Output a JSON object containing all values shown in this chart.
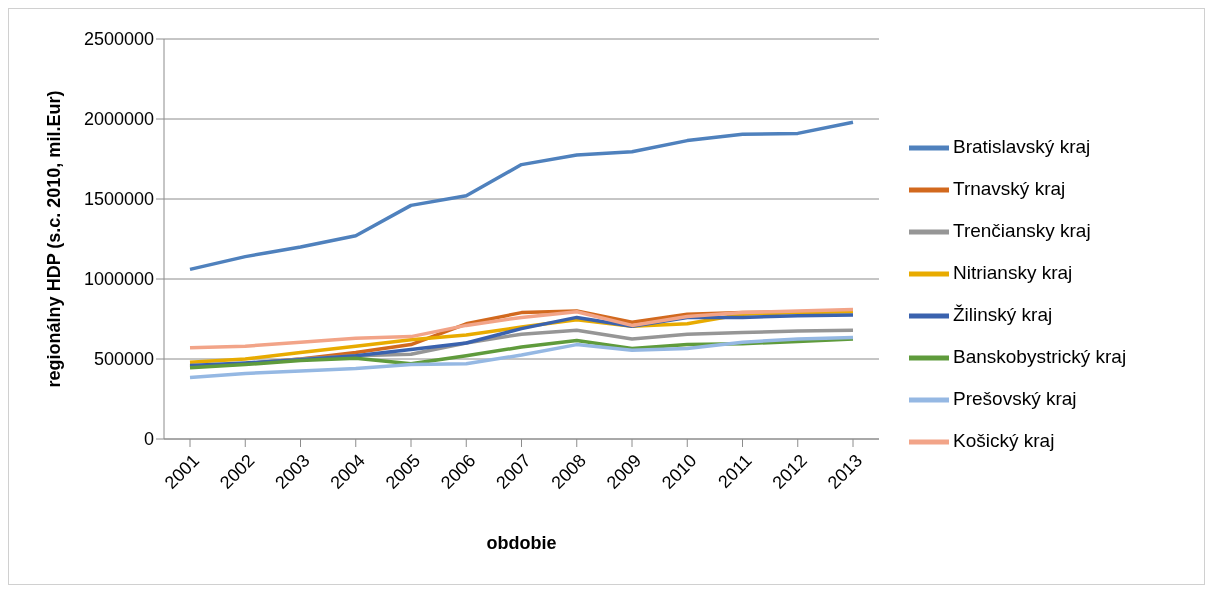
{
  "chart_data": {
    "type": "line",
    "xlabel": "obdobie",
    "ylabel": "regionálny HDP (s.c. 2010, mil.Eur)",
    "categories": [
      "2001",
      "2002",
      "2003",
      "2004",
      "2005",
      "2006",
      "2007",
      "2008",
      "2009",
      "2010",
      "2011",
      "2012",
      "2013"
    ],
    "ylim": [
      0,
      2500000
    ],
    "yticks": [
      0,
      500000,
      1000000,
      1500000,
      2000000,
      2500000
    ],
    "grid": "y",
    "legend": "right",
    "marker": "none",
    "line_style": "solid",
    "series": [
      {
        "name": "Bratislavský kraj",
        "color": "#4f81bd",
        "values": [
          1060000,
          1140000,
          1200000,
          1270000,
          1460000,
          1520000,
          1715000,
          1775000,
          1795000,
          1865000,
          1905000,
          1910000,
          1980000
        ]
      },
      {
        "name": "Trnavský kraj",
        "color": "#d2691e",
        "values": [
          455000,
          470000,
          500000,
          540000,
          590000,
          720000,
          790000,
          800000,
          730000,
          780000,
          790000,
          795000,
          800000
        ]
      },
      {
        "name": "Trenčiansky kraj",
        "color": "#969696",
        "values": [
          450000,
          470000,
          500000,
          520000,
          530000,
          600000,
          655000,
          680000,
          625000,
          655000,
          665000,
          675000,
          680000
        ]
      },
      {
        "name": "Nitriansky kraj",
        "color": "#e8ab00",
        "values": [
          480000,
          500000,
          540000,
          580000,
          620000,
          650000,
          700000,
          745000,
          705000,
          720000,
          780000,
          790000,
          795000
        ]
      },
      {
        "name": "Žilinský kraj",
        "color": "#3a62ae",
        "values": [
          460000,
          475000,
          495000,
          520000,
          560000,
          600000,
          690000,
          760000,
          705000,
          760000,
          760000,
          770000,
          775000
        ]
      },
      {
        "name": "Banskobystrický kraj",
        "color": "#5f9b3c",
        "values": [
          445000,
          465000,
          490000,
          505000,
          470000,
          520000,
          575000,
          615000,
          565000,
          590000,
          595000,
          610000,
          625000
        ]
      },
      {
        "name": "Prešovský kraj",
        "color": "#95b8e3",
        "values": [
          385000,
          410000,
          425000,
          440000,
          465000,
          470000,
          525000,
          590000,
          555000,
          565000,
          605000,
          625000,
          635000
        ]
      },
      {
        "name": "Košický kraj",
        "color": "#f2a488",
        "values": [
          570000,
          580000,
          605000,
          630000,
          640000,
          710000,
          760000,
          795000,
          710000,
          765000,
          790000,
          800000,
          810000
        ]
      }
    ]
  }
}
